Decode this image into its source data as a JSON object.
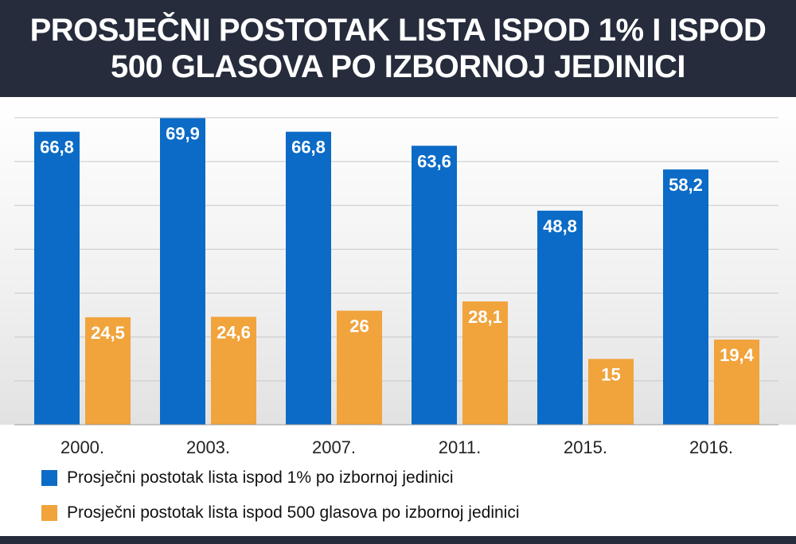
{
  "header": {
    "title": "PROSJEČNI POSTOTAK LISTA ISPOD 1% I ISPOD 500 GLASOVA PO IZBORNOJ JEDINICI"
  },
  "colors": {
    "header_bg": "#262c3c",
    "series_blue": "#0b6bc6",
    "series_orange": "#f1a33c",
    "grid": "#c8c8c8",
    "label_white": "#ffffff"
  },
  "chart_data": {
    "type": "bar",
    "title": "PROSJEČNI POSTOTAK LISTA ISPOD 1% I ISPOD 500 GLASOVA PO IZBORNOJ JEDINICI",
    "categories": [
      "2000.",
      "2003.",
      "2007.",
      "2011.",
      "2015.",
      "2016."
    ],
    "series": [
      {
        "name": "Prosječni postotak lista ispod 1% po izbornoj jedinici",
        "color": "#0b6bc6",
        "values": [
          66.8,
          69.9,
          66.8,
          63.6,
          48.8,
          58.2
        ],
        "labels": [
          "66,8",
          "69,9",
          "66,8",
          "63,6",
          "48,8",
          "58,2"
        ]
      },
      {
        "name": "Prosječni postotak lista ispod 500 glasova po izbornoj jedinici",
        "color": "#f1a33c",
        "values": [
          24.5,
          24.6,
          26,
          28.1,
          15,
          19.4
        ],
        "labels": [
          "24,5",
          "24,6",
          "26",
          "28,1",
          "15",
          "19,4"
        ]
      }
    ],
    "xlabel": "",
    "ylabel": "",
    "ylim": [
      0,
      70
    ],
    "grid": true,
    "legend_position": "bottom-left"
  },
  "legend": {
    "items": [
      {
        "label": "Prosječni postotak lista ispod 1% po izbornoj jedinici",
        "color": "#0b6bc6"
      },
      {
        "label": "Prosječni postotak lista ispod 500 glasova po izbornoj jedinici",
        "color": "#f1a33c"
      }
    ]
  }
}
